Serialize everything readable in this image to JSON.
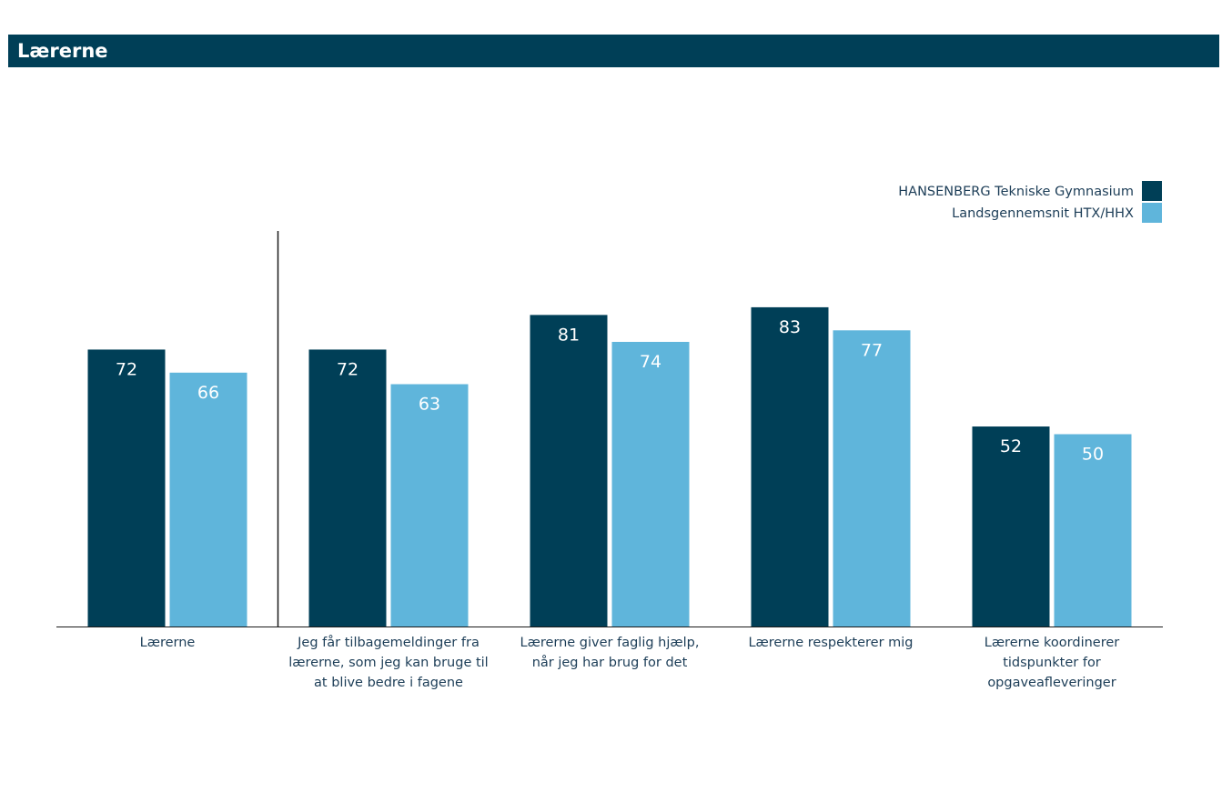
{
  "header": {
    "title": "Lærerne"
  },
  "colors": {
    "header_bg": "#003f57",
    "series_primary": "#003f57",
    "series_secondary": "#5fb5db"
  },
  "chart_data": {
    "type": "bar",
    "title": "Lærerne",
    "xlabel": "",
    "ylabel": "",
    "ylim": [
      0,
      100
    ],
    "grid": false,
    "legend": "top-right",
    "categories": [
      "Lærerne",
      "Jeg får tilbagemeldinger fra lærerne, som jeg kan bruge til at blive bedre i fagene",
      "Lærerne giver faglig hjælp, når jeg har brug for det",
      "Lærerne respekterer mig",
      "Lærerne koordinerer tidspunkter for opgaveafleveringer"
    ],
    "category_lines": [
      [
        "Lærerne"
      ],
      [
        "Jeg får tilbagemeldinger fra",
        "lærerne, som jeg kan bruge til",
        "at blive bedre i fagene"
      ],
      [
        "Lærerne giver faglig hjælp,",
        "når jeg har brug for det"
      ],
      [
        "Lærerne respekterer mig"
      ],
      [
        "Lærerne koordinerer",
        "tidspunkter for",
        "opgaveafleveringer"
      ]
    ],
    "series": [
      {
        "name": "HANSENBERG Tekniske Gymnasium",
        "color": "#003f57",
        "values": [
          72,
          72,
          81,
          83,
          52
        ]
      },
      {
        "name": "Landsgennemsnit HTX/HHX",
        "color": "#5fb5db",
        "values": [
          66,
          63,
          74,
          77,
          50
        ]
      }
    ]
  }
}
